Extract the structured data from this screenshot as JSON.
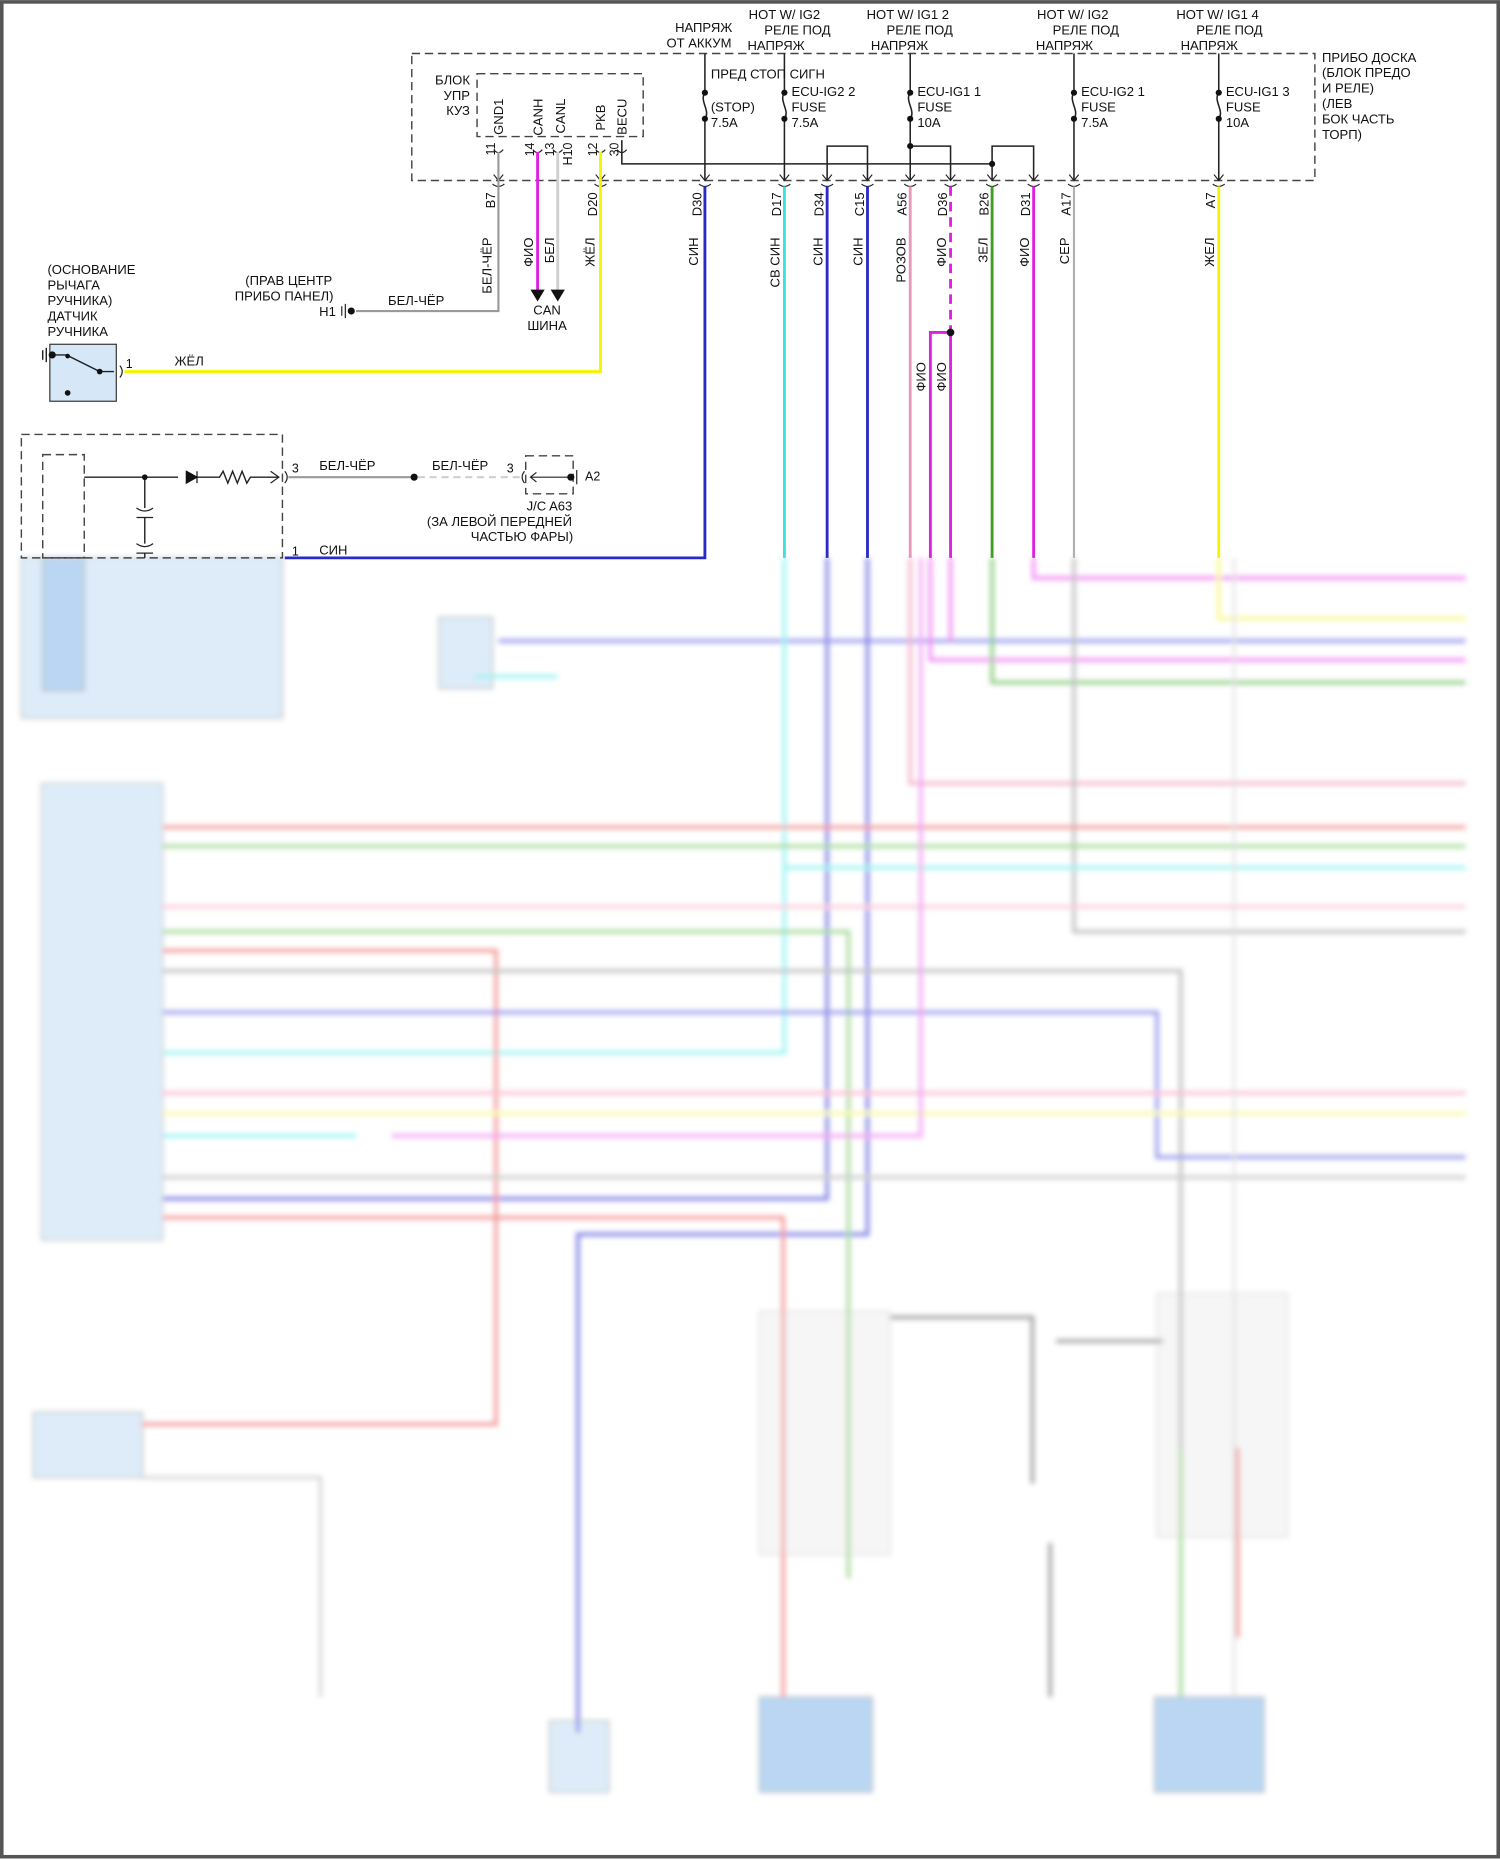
{
  "top_labels": {
    "battery": [
      "НАПРЯЖ",
      "ОТ АККУМ"
    ],
    "ig2_a": [
      "HOT W/ IG2",
      "РЕЛЕ ПОД",
      "НАПРЯЖ"
    ],
    "ig1_2": [
      "HOT W/ IG1 2",
      "РЕЛЕ ПОД",
      "НАПРЯЖ"
    ],
    "ig2_b": [
      "HOT W/ IG2",
      "РЕЛЕ ПОД",
      "НАПРЯЖ"
    ],
    "ig1_4": [
      "HOT W/ IG1 4",
      "РЕЛЕ ПОД",
      "НАПРЯЖ"
    ]
  },
  "junction_block": {
    "name": [
      "ПРИБО ДОСКА",
      "(БЛОК ПРЕДО",
      "И РЕЛЕ)",
      "(ЛЕВ",
      "БОК ЧАСТЬ",
      "ТОРП)"
    ]
  },
  "fuses": [
    {
      "lines": [
        "ПРЕД СТОП СИГН",
        "(STOP)",
        "7.5A"
      ]
    },
    {
      "lines": [
        "ECU-IG2 2",
        "FUSE",
        "7.5A"
      ]
    },
    {
      "lines": [
        "ECU-IG1 1",
        "FUSE",
        "10A"
      ]
    },
    {
      "lines": [
        "ECU-IG2 1",
        "FUSE",
        "7.5A"
      ]
    },
    {
      "lines": [
        "ECU-IG1 3",
        "FUSE",
        "10A"
      ]
    }
  ],
  "body_ecu": {
    "name": [
      "БЛОК",
      "УПР",
      "КУЗ"
    ],
    "connector": "H10",
    "pins": [
      {
        "name": "GND1",
        "num": "11"
      },
      {
        "name": "CANH",
        "num": "14"
      },
      {
        "name": "CANL",
        "num": "13"
      },
      {
        "name": "PKB",
        "num": "12"
      },
      {
        "name": "BECU",
        "num": "30"
      }
    ]
  },
  "connectors": [
    "B7",
    "D20",
    "D30",
    "D17",
    "D34",
    "C15",
    "A56",
    "D36",
    "B26",
    "D31",
    "A17",
    "A7"
  ],
  "wire_labels": {
    "b7": "БЕЛ-ЧЁР",
    "canh": "ФИО",
    "canl": "БЕЛ",
    "d20": "ЖЁЛ",
    "d30": "СИН",
    "d17": "СВ СИН",
    "d34": "СИН",
    "c15": "СИН",
    "a56": "РОЗОВ",
    "d36": "ФИО",
    "b26": "ЗЕЛ",
    "d31": "ФИО",
    "a17": "СЕР",
    "a7": "ЖЕЛ",
    "branch_1": "ФИО",
    "branch_2": "ФИО"
  },
  "can_bus": [
    "CAN",
    "ШИНА"
  ],
  "ground_h1": {
    "location": [
      "(ПРАВ ЦЕНТР",
      "ПРИБО ПАНЕЛ)"
    ],
    "id": "H1",
    "wire": "БЕЛ-ЧЁР"
  },
  "parking_brake_switch": {
    "label": [
      "(ОСНОВАНИЕ",
      "РЫЧАГА",
      "РУЧНИКА)",
      "ДАТЧИК",
      "РУЧНИКА"
    ],
    "pin": "1",
    "wire": "ЖЁЛ"
  },
  "lower_module": {
    "pin_3": "3",
    "wire_3": "БЕЛ-ЧЁР",
    "wire_3b": "БЕЛ-ЧЁР",
    "pin_1": "1",
    "wire_1": "СИН"
  },
  "junction_connector": {
    "pin": "3",
    "ground": "A2",
    "name": "J/C A63",
    "location": [
      "(ЗА ЛЕВОЙ ПЕРЕДНЕЙ",
      "ЧАСТЬЮ ФАРЫ)"
    ]
  },
  "colors": {
    "box_fill": "#d6e8f8",
    "blue": "#2a2ac8",
    "cyan": "#3fe0e0",
    "magenta": "#e020e0",
    "yellow": "#f4f400",
    "pink": "#e898b8",
    "green": "#3ca020",
    "gray": "#9a9a9a",
    "red": "#f08080"
  }
}
